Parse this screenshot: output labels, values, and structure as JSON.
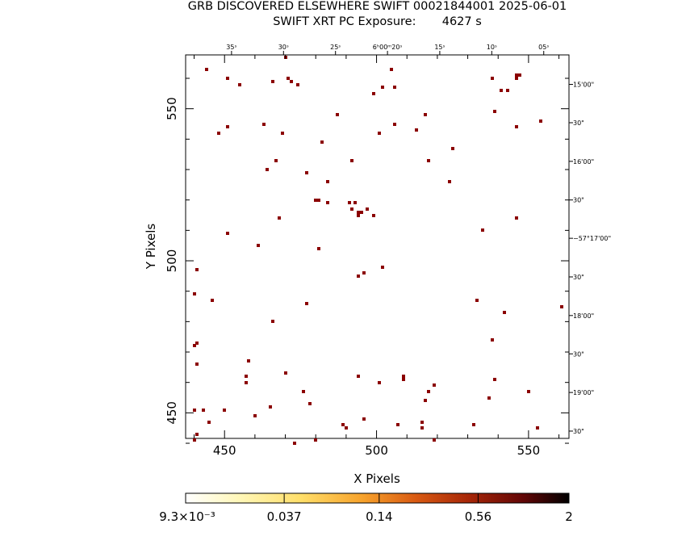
{
  "header": {
    "title_line1": "GRB DISCOVERED ELSEWHERE SWIFT 00021844001 2025-06-01",
    "title_line2": "SWIFT XRT PC Exposure:       4627 s"
  },
  "chart_data": {
    "type": "scatter",
    "xlabel": "X Pixels",
    "ylabel": "Y Pixels",
    "xlim": [
      437.2,
      563.3
    ],
    "ylim": [
      441.6,
      567.7
    ],
    "x_ticks": [
      450,
      500,
      550
    ],
    "y_ticks": [
      450,
      500,
      550
    ],
    "top_ticks": [
      {
        "x": 452.3,
        "label": "35ˢ"
      },
      {
        "x": 469.4,
        "label": "30ˢ"
      },
      {
        "x": 486.5,
        "label": "25ˢ"
      },
      {
        "x": 503.6,
        "label": "6ʰ00ᵐ20ˢ"
      },
      {
        "x": 520.8,
        "label": "15ˢ"
      },
      {
        "x": 537.9,
        "label": "10ˢ"
      },
      {
        "x": 555.0,
        "label": "05ˢ"
      }
    ],
    "right_ticks": [
      {
        "y": 558.0,
        "label": "15'00\""
      },
      {
        "y": 545.4,
        "label": "30\""
      },
      {
        "y": 532.7,
        "label": "16'00\""
      },
      {
        "y": 520.0,
        "label": "30\""
      },
      {
        "y": 507.4,
        "label": "−57°17'00\""
      },
      {
        "y": 494.7,
        "label": "30\""
      },
      {
        "y": 482.0,
        "label": "18'00\""
      },
      {
        "y": 469.4,
        "label": "30\""
      },
      {
        "y": 456.7,
        "label": "19'00\""
      },
      {
        "y": 444.0,
        "label": "30\""
      }
    ],
    "colorbar": {
      "labels": [
        "9.3×10⁻³",
        "0.037",
        "0.14",
        "0.56",
        "2"
      ],
      "min": 0.0093,
      "max": 2,
      "scale": "log",
      "colors": [
        "#ffffff",
        "#fff3a0",
        "#ffd24a",
        "#f59a26",
        "#d85a10",
        "#a32508",
        "#6b0808",
        "#000000"
      ]
    },
    "pixel_color": "#8b0000",
    "points": [
      [
        444,
        563
      ],
      [
        451,
        560
      ],
      [
        455,
        558
      ],
      [
        466,
        559
      ],
      [
        470,
        567
      ],
      [
        471,
        560
      ],
      [
        472,
        559
      ],
      [
        474,
        558
      ],
      [
        463,
        545
      ],
      [
        451,
        544
      ],
      [
        448,
        542
      ],
      [
        469,
        542
      ],
      [
        464,
        530
      ],
      [
        467,
        533
      ],
      [
        477,
        529
      ],
      [
        482,
        539
      ],
      [
        487,
        548
      ],
      [
        492,
        533
      ],
      [
        501,
        542
      ],
      [
        499,
        555
      ],
      [
        502,
        557
      ],
      [
        505,
        563
      ],
      [
        506,
        557
      ],
      [
        506,
        545
      ],
      [
        513,
        543
      ],
      [
        516,
        548
      ],
      [
        517,
        533
      ],
      [
        525,
        537
      ],
      [
        524,
        526
      ],
      [
        484,
        526
      ],
      [
        480,
        520
      ],
      [
        481,
        520
      ],
      [
        484,
        519
      ],
      [
        491,
        519
      ],
      [
        493,
        519
      ],
      [
        492,
        517
      ],
      [
        494,
        516
      ],
      [
        495,
        516
      ],
      [
        494,
        515
      ],
      [
        497,
        517
      ],
      [
        499,
        515
      ],
      [
        468,
        514
      ],
      [
        451,
        509
      ],
      [
        461,
        505
      ],
      [
        481,
        504
      ],
      [
        441,
        497
      ],
      [
        440,
        489
      ],
      [
        446,
        487
      ],
      [
        477,
        486
      ],
      [
        466,
        480
      ],
      [
        494,
        495
      ],
      [
        496,
        496
      ],
      [
        502,
        498
      ],
      [
        535,
        510
      ],
      [
        546,
        514
      ],
      [
        533,
        487
      ],
      [
        542,
        483
      ],
      [
        561,
        485
      ],
      [
        538,
        474
      ],
      [
        441,
        473
      ],
      [
        440,
        472
      ],
      [
        441,
        466
      ],
      [
        458,
        467
      ],
      [
        457,
        462
      ],
      [
        457,
        460
      ],
      [
        470,
        463
      ],
      [
        476,
        457
      ],
      [
        478,
        453
      ],
      [
        465,
        452
      ],
      [
        460,
        449
      ],
      [
        450,
        451
      ],
      [
        443,
        451
      ],
      [
        445,
        447
      ],
      [
        440,
        451
      ],
      [
        441,
        443
      ],
      [
        440,
        441
      ],
      [
        473,
        440
      ],
      [
        480,
        441
      ],
      [
        489,
        446
      ],
      [
        490,
        445
      ],
      [
        496,
        448
      ],
      [
        494,
        462
      ],
      [
        501,
        460
      ],
      [
        507,
        446
      ],
      [
        509,
        461
      ],
      [
        509,
        462
      ],
      [
        519,
        459
      ],
      [
        517,
        457
      ],
      [
        516,
        454
      ],
      [
        515,
        447
      ],
      [
        515,
        445
      ],
      [
        519,
        441
      ],
      [
        532,
        446
      ],
      [
        537,
        455
      ],
      [
        539,
        461
      ],
      [
        538,
        474
      ],
      [
        550,
        457
      ],
      [
        553,
        445
      ],
      [
        538,
        560
      ],
      [
        539,
        549
      ],
      [
        541,
        556
      ],
      [
        543,
        556
      ],
      [
        546,
        561
      ],
      [
        546,
        560
      ],
      [
        547,
        561
      ],
      [
        546,
        544
      ],
      [
        554,
        546
      ]
    ]
  }
}
